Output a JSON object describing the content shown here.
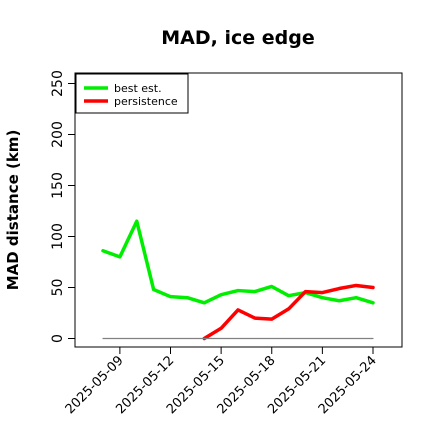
{
  "chart_data": {
    "type": "line",
    "title": "MAD, ice edge",
    "xlabel": "",
    "ylabel": "MAD distance (km)",
    "x": [
      "2025-05-08",
      "2025-05-09",
      "2025-05-10",
      "2025-05-11",
      "2025-05-12",
      "2025-05-13",
      "2025-05-14",
      "2025-05-15",
      "2025-05-16",
      "2025-05-17",
      "2025-05-18",
      "2025-05-19",
      "2025-05-20",
      "2025-05-21",
      "2025-05-22",
      "2025-05-23",
      "2025-05-24"
    ],
    "xtick_labels": [
      "2025-05-09",
      "2025-05-12",
      "2025-05-15",
      "2025-05-18",
      "2025-05-21",
      "2025-05-24"
    ],
    "yticks": [
      0,
      50,
      100,
      150,
      200,
      250
    ],
    "ylim": [
      -7,
      262
    ],
    "series": [
      {
        "name": "best est.",
        "color": "#00ee00",
        "values": [
          86,
          80,
          115,
          48,
          41,
          40,
          35,
          43,
          47,
          46,
          51,
          42,
          45,
          40,
          37,
          40,
          35
        ]
      },
      {
        "name": "persistence",
        "color": "#ff0000",
        "values": [
          null,
          null,
          null,
          null,
          null,
          null,
          0,
          10,
          28,
          20,
          19,
          29,
          46,
          45,
          49,
          52,
          50
        ]
      },
      {
        "name": "",
        "color": "#808080",
        "values": [
          0,
          0,
          0,
          0,
          0,
          0,
          0,
          0,
          0,
          0,
          0,
          0,
          0,
          0,
          0,
          0,
          0
        ]
      }
    ],
    "legend": {
      "placement": "top-left",
      "entries": [
        "best est.",
        "persistence"
      ]
    },
    "grid": false
  }
}
